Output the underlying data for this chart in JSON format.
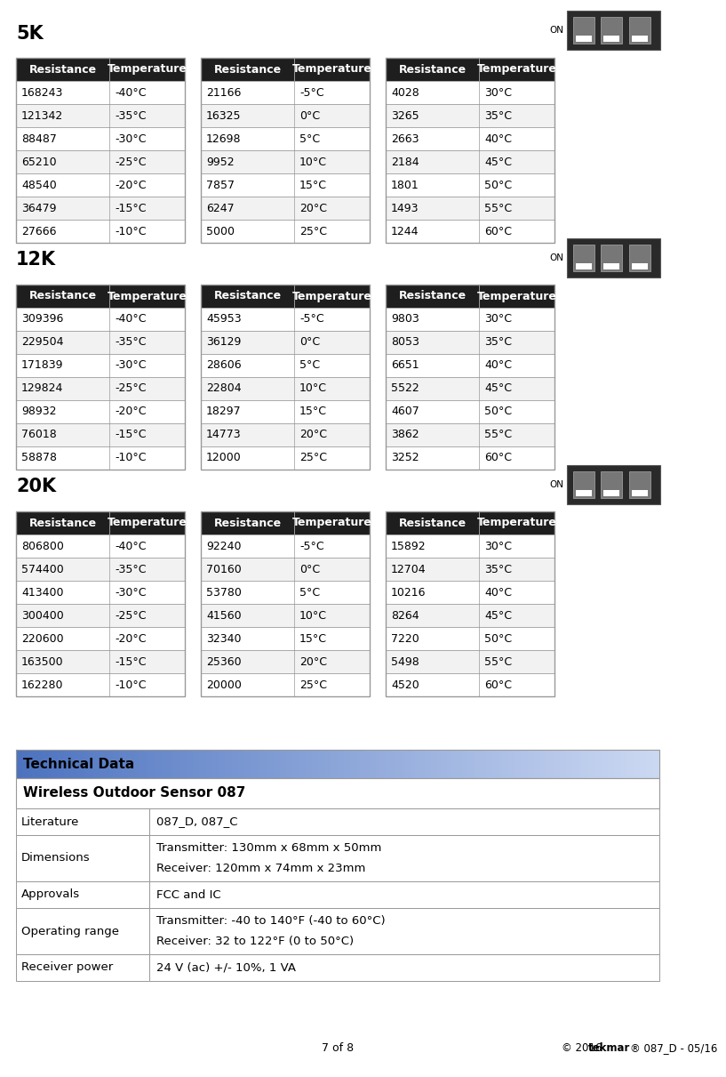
{
  "page_label": "7 of 8",
  "copyright": "© 2016  tekmar® 087_D - 05/16",
  "sections": [
    {
      "label": "5K",
      "tables": [
        {
          "rows": [
            [
              "168243",
              "-40°C"
            ],
            [
              "121342",
              "-35°C"
            ],
            [
              "88487",
              "-30°C"
            ],
            [
              "65210",
              "-25°C"
            ],
            [
              "48540",
              "-20°C"
            ],
            [
              "36479",
              "-15°C"
            ],
            [
              "27666",
              "-10°C"
            ]
          ]
        },
        {
          "rows": [
            [
              "21166",
              "-5°C"
            ],
            [
              "16325",
              "0°C"
            ],
            [
              "12698",
              "5°C"
            ],
            [
              "9952",
              "10°C"
            ],
            [
              "7857",
              "15°C"
            ],
            [
              "6247",
              "20°C"
            ],
            [
              "5000",
              "25°C"
            ]
          ]
        },
        {
          "rows": [
            [
              "4028",
              "30°C"
            ],
            [
              "3265",
              "35°C"
            ],
            [
              "2663",
              "40°C"
            ],
            [
              "2184",
              "45°C"
            ],
            [
              "1801",
              "50°C"
            ],
            [
              "1493",
              "55°C"
            ],
            [
              "1244",
              "60°C"
            ]
          ]
        }
      ]
    },
    {
      "label": "12K",
      "tables": [
        {
          "rows": [
            [
              "309396",
              "-40°C"
            ],
            [
              "229504",
              "-35°C"
            ],
            [
              "171839",
              "-30°C"
            ],
            [
              "129824",
              "-25°C"
            ],
            [
              "98932",
              "-20°C"
            ],
            [
              "76018",
              "-15°C"
            ],
            [
              "58878",
              "-10°C"
            ]
          ]
        },
        {
          "rows": [
            [
              "45953",
              "-5°C"
            ],
            [
              "36129",
              "0°C"
            ],
            [
              "28606",
              "5°C"
            ],
            [
              "22804",
              "10°C"
            ],
            [
              "18297",
              "15°C"
            ],
            [
              "14773",
              "20°C"
            ],
            [
              "12000",
              "25°C"
            ]
          ]
        },
        {
          "rows": [
            [
              "9803",
              "30°C"
            ],
            [
              "8053",
              "35°C"
            ],
            [
              "6651",
              "40°C"
            ],
            [
              "5522",
              "45°C"
            ],
            [
              "4607",
              "50°C"
            ],
            [
              "3862",
              "55°C"
            ],
            [
              "3252",
              "60°C"
            ]
          ]
        }
      ]
    },
    {
      "label": "20K",
      "tables": [
        {
          "rows": [
            [
              "806800",
              "-40°C"
            ],
            [
              "574400",
              "-35°C"
            ],
            [
              "413400",
              "-30°C"
            ],
            [
              "300400",
              "-25°C"
            ],
            [
              "220600",
              "-20°C"
            ],
            [
              "163500",
              "-15°C"
            ],
            [
              "162280",
              "-10°C"
            ]
          ]
        },
        {
          "rows": [
            [
              "92240",
              "-5°C"
            ],
            [
              "70160",
              "0°C"
            ],
            [
              "53780",
              "5°C"
            ],
            [
              "41560",
              "10°C"
            ],
            [
              "32340",
              "15°C"
            ],
            [
              "25360",
              "20°C"
            ],
            [
              "20000",
              "25°C"
            ]
          ]
        },
        {
          "rows": [
            [
              "15892",
              "30°C"
            ],
            [
              "12704",
              "35°C"
            ],
            [
              "10216",
              "40°C"
            ],
            [
              "8264",
              "45°C"
            ],
            [
              "7220",
              "50°C"
            ],
            [
              "5498",
              "55°C"
            ],
            [
              "4520",
              "60°C"
            ]
          ]
        }
      ]
    }
  ],
  "tech_data": {
    "header": "Technical Data",
    "section_title": "Wireless Outdoor Sensor 087",
    "rows": [
      [
        "Literature",
        "087_D, 087_C"
      ],
      [
        "Dimensions",
        "Transmitter: 130mm x 68mm x 50mm\nReceiver: 120mm x 74mm x 23mm"
      ],
      [
        "Approvals",
        "FCC and IC"
      ],
      [
        "Operating range",
        "Transmitter: -40 to 140°F (-40 to 60°C)\nReceiver: 32 to 122°F (0 to 50°C)"
      ],
      [
        "Receiver power",
        "24 V (ac) +/- 10%, 1 VA"
      ]
    ]
  }
}
